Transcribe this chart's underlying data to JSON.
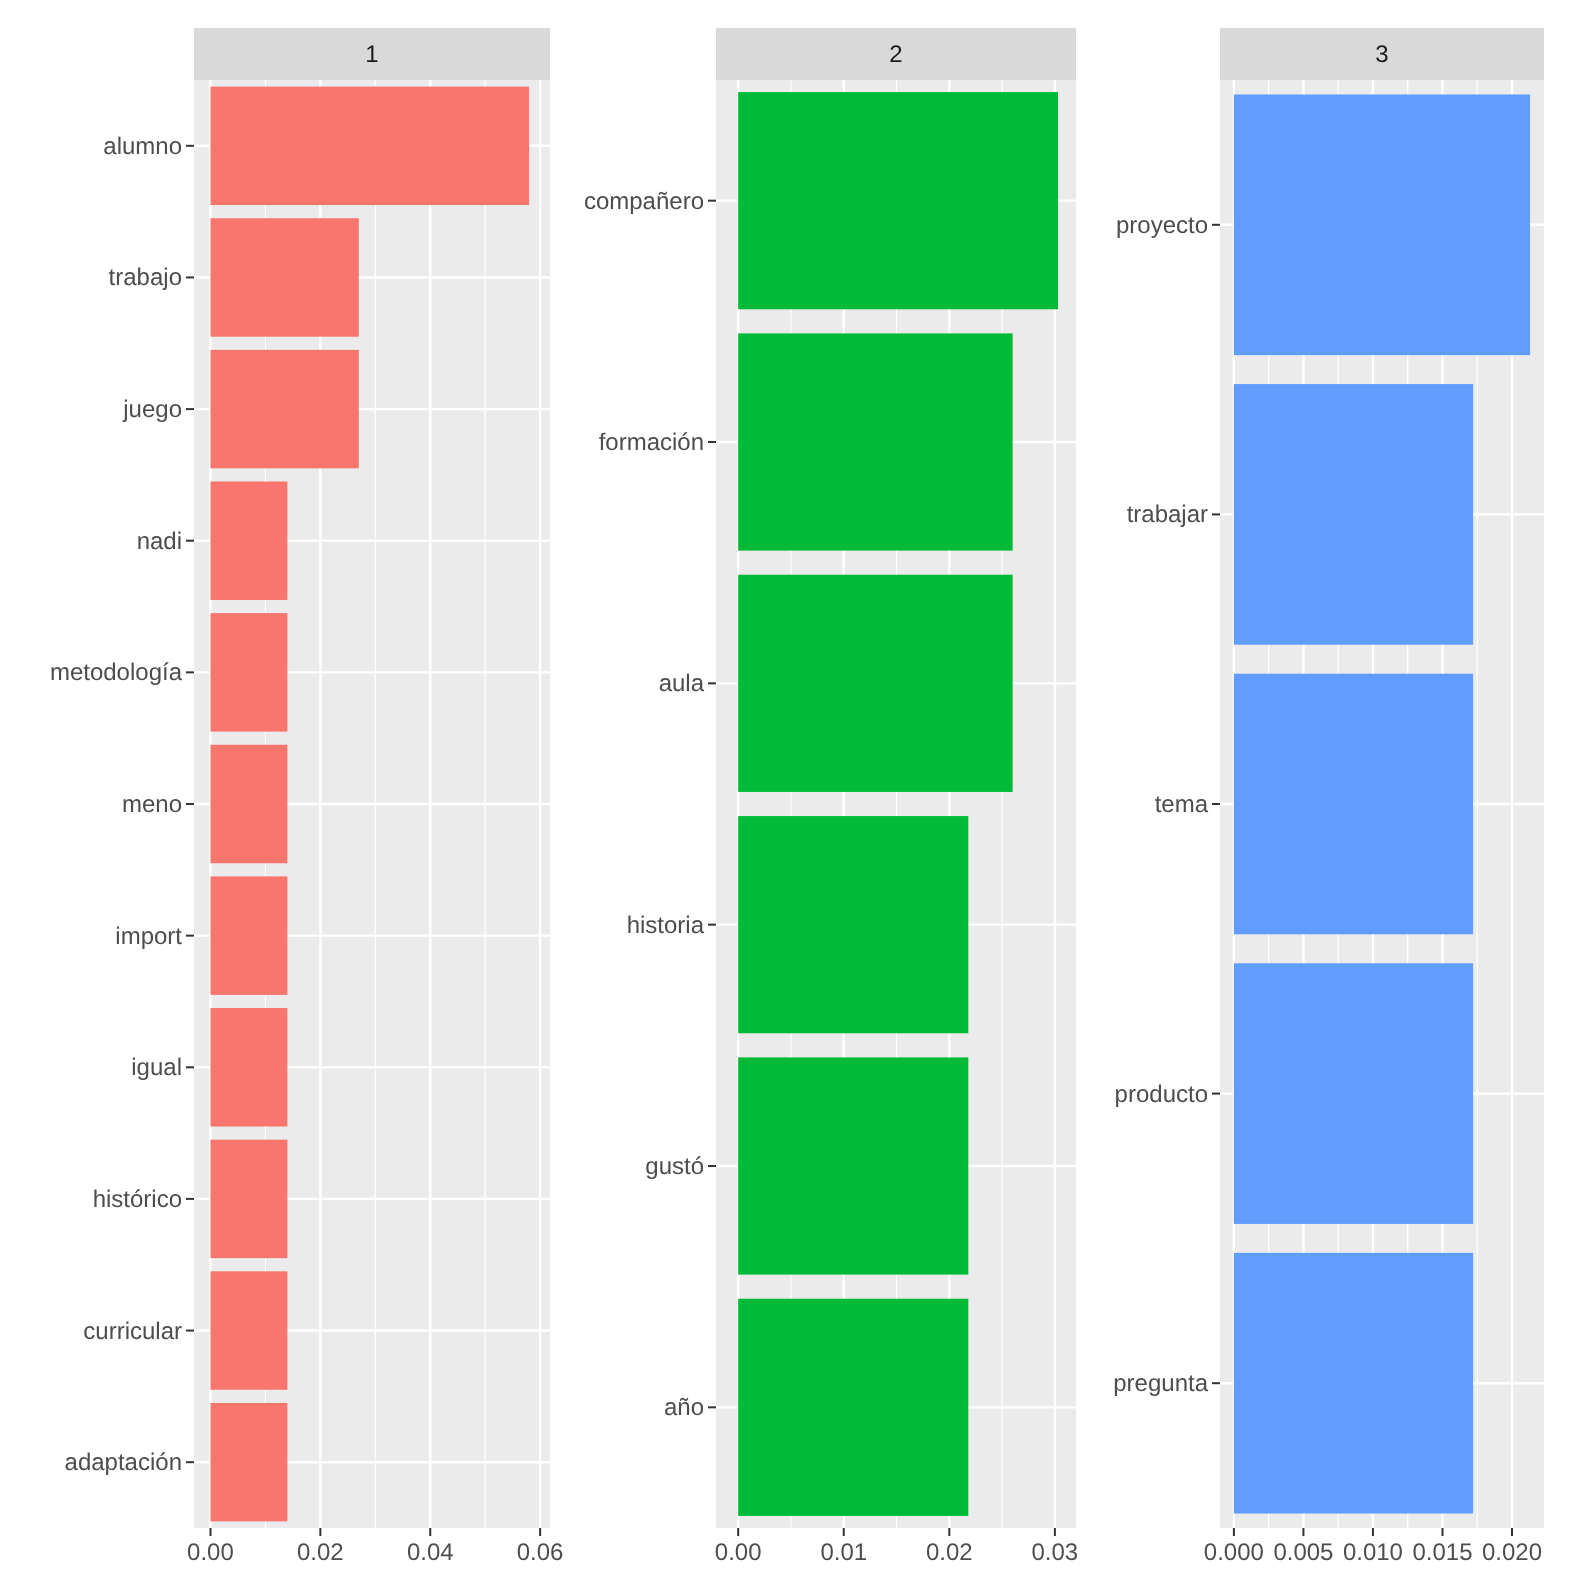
{
  "chart_data": [
    {
      "type": "bar",
      "orientation": "horizontal",
      "title": "1",
      "categories": [
        "alumno",
        "trabajo",
        "juego",
        "nadi",
        "metodología",
        "meno",
        "import",
        "igual",
        "histórico",
        "curricular",
        "adaptación"
      ],
      "values": [
        0.058,
        0.027,
        0.027,
        0.014,
        0.014,
        0.014,
        0.014,
        0.014,
        0.014,
        0.014,
        0.014
      ],
      "color": "#f8766d",
      "xlim": [
        -0.003,
        0.0618
      ],
      "xticks": [
        {
          "value": 0,
          "label": "0.00"
        },
        0.02,
        0.04,
        0.06
      ],
      "grid": true
    },
    {
      "type": "bar",
      "orientation": "horizontal",
      "title": "2",
      "categories": [
        "compañero",
        "formación",
        "aula",
        "historia",
        "gustó",
        "año"
      ],
      "values": [
        0.0303,
        0.026,
        0.026,
        0.0218,
        0.0218,
        0.0218
      ],
      "color": "#00ba38",
      "xlim": [
        -0.0021,
        0.032
      ],
      "xticks": [
        {
          "value": 0,
          "label": "0.00"
        },
        0.01,
        0.02,
        0.03
      ],
      "grid": true
    },
    {
      "type": "bar",
      "orientation": "horizontal",
      "title": "3",
      "categories": [
        "proyecto",
        "trabajar",
        "tema",
        "producto",
        "pregunta"
      ],
      "values": [
        0.0213,
        0.0172,
        0.0172,
        0.0172,
        0.0172
      ],
      "color": "#619cff",
      "xlim": [
        -0.001,
        0.0223
      ],
      "xticks": [
        {
          "value": 0,
          "label": "0.000"
        },
        {
          "value": 0.005,
          "label": "0.005"
        },
        {
          "value": 0.01,
          "label": "0.010"
        },
        {
          "value": 0.015,
          "label": "0.015"
        },
        {
          "value": 0.02,
          "label": "0.020"
        }
      ],
      "grid": true
    }
  ]
}
